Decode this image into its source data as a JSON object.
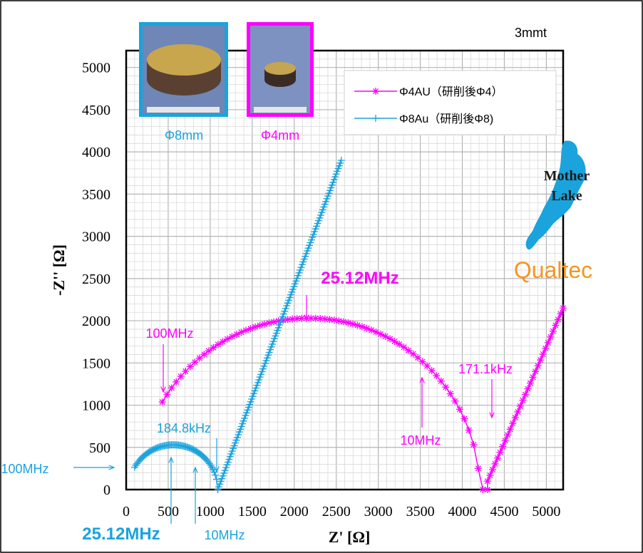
{
  "chart_data": {
    "type": "scatter",
    "corner_label": "3mmt",
    "xlabel": "Z' [Ω]",
    "ylabel": "-Z'' [Ω]",
    "xlim": [
      0,
      5200
    ],
    "ylim": [
      0,
      5200
    ],
    "x_ticks": [
      0,
      500,
      1000,
      1500,
      2000,
      2500,
      3000,
      3500,
      4000,
      4500,
      5000
    ],
    "y_ticks": [
      0,
      500,
      1000,
      1500,
      2000,
      2500,
      3000,
      3500,
      4000,
      4500,
      5000
    ],
    "grid": true,
    "legend_position": "top-right",
    "series": [
      {
        "name": "Φ4AU（研削後Φ4）",
        "color": "#ff00ff",
        "marker": "asterisk",
        "arcs": [
          {
            "center_x": 2175,
            "radius": 2030,
            "from_x": 430,
            "to_x": 4300,
            "points": 70,
            "y_start": 1050
          }
        ],
        "segments": [
          {
            "from": [
              4300,
              100
            ],
            "to": [
              5200,
              2150
            ],
            "points": 30
          }
        ]
      },
      {
        "name": "Φ8Au（研削後Φ8)",
        "color": "#1aa3dd",
        "marker": "plus",
        "arcs": [
          {
            "center_x": 560,
            "radius": 530,
            "from_x": 100,
            "to_x": 1090,
            "points": 70,
            "y_start": 270
          }
        ],
        "segments": [
          {
            "from": [
              1090,
              0
            ],
            "to": [
              2560,
              3900
            ],
            "points": 120
          }
        ]
      }
    ],
    "annotations": [
      {
        "text": "25.12MHz",
        "color": "#ff00ff",
        "bold": true,
        "x": 2200,
        "y": 1880
      },
      {
        "text": "100MHz",
        "color": "#ff00ff",
        "x": 430,
        "y": 1050
      },
      {
        "text": "171.1kHz",
        "color": "#ff00ff",
        "x": 4300,
        "y": 100
      },
      {
        "text": "10MHz",
        "color": "#ff00ff",
        "x": 3500,
        "y": 1400
      },
      {
        "text": "184.8kHz",
        "color": "#1aa3dd",
        "x": 1090,
        "y": 0
      },
      {
        "text": "100MHz",
        "color": "#1aa3dd",
        "x": 100,
        "y": 270
      },
      {
        "text": "25.12MHz",
        "color": "#1aa3dd",
        "bold": true,
        "x": 560,
        "y": 530
      },
      {
        "text": "10MHz",
        "color": "#1aa3dd",
        "x": 850,
        "y": 300
      }
    ],
    "photos": [
      {
        "caption": "Φ8mm",
        "color": "#1aa3dd"
      },
      {
        "caption": "Φ4mm",
        "color": "#ff00ff"
      }
    ]
  },
  "logos": {
    "mother_lake_line1": "Mother",
    "mother_lake_line2": "Lake",
    "qualtec": "Qualtec",
    "lake_color": "#1aa3dd",
    "qualtec_color": "#f7941d"
  }
}
